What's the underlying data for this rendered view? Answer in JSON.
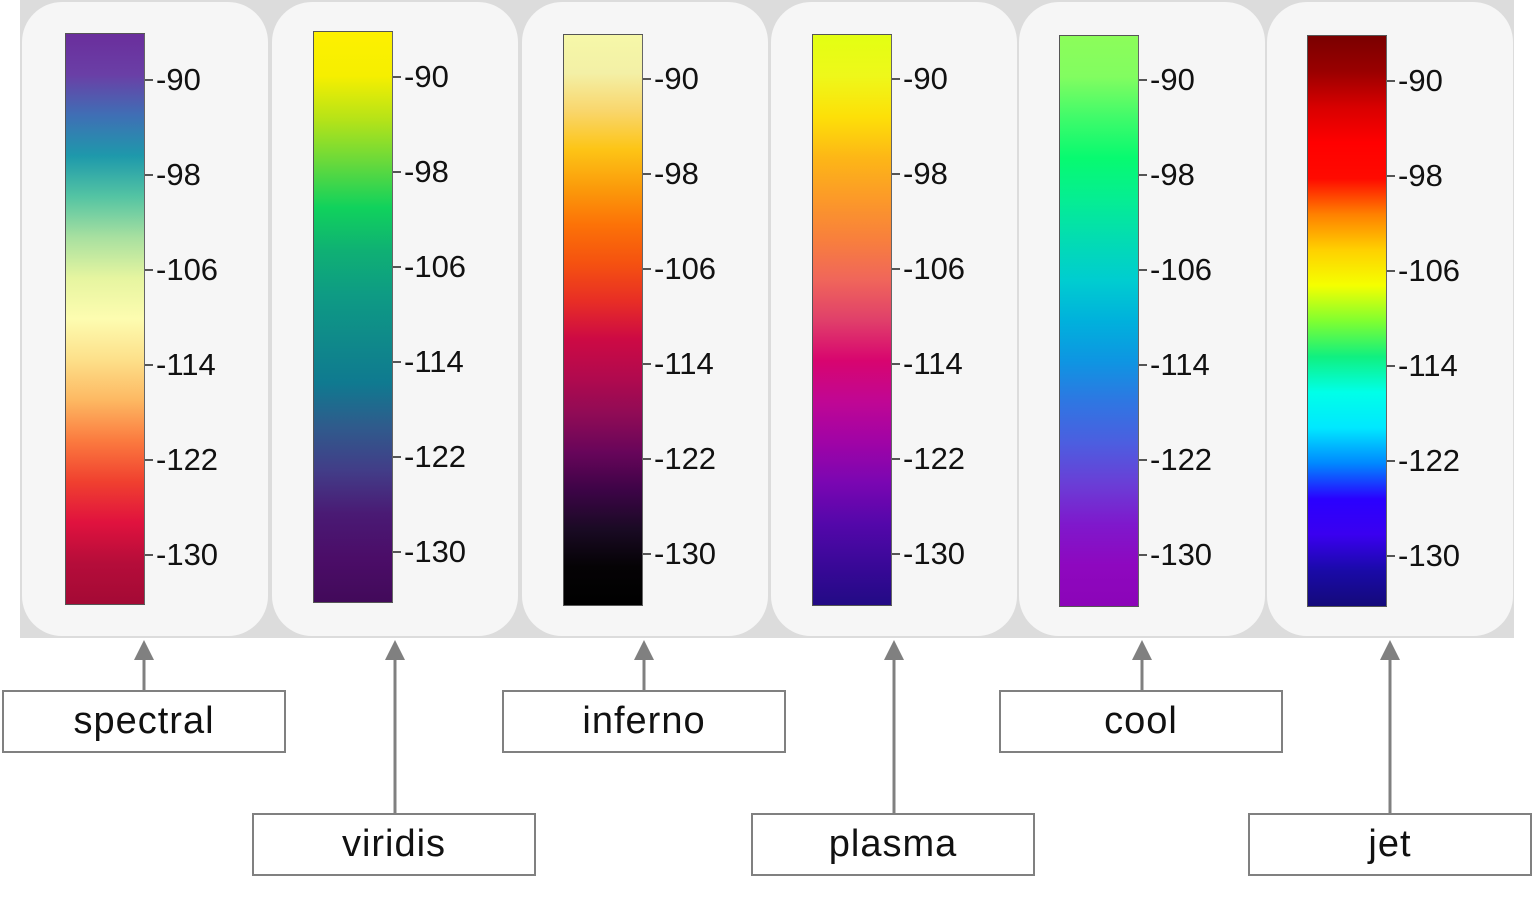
{
  "ticks": [
    "-90",
    "-98",
    "-106",
    "-114",
    "-122",
    "-130"
  ],
  "colormaps": [
    {
      "name": "spectral",
      "stops": [
        "#6a2e9c",
        "#6a3fa6",
        "#3f6fb5",
        "#1e99ab",
        "#54c4a3",
        "#a8e0a0",
        "#e6f5a0",
        "#fdfcb0",
        "#fde08a",
        "#fdb862",
        "#fb7a3f",
        "#f0402f",
        "#e0123e",
        "#b50d3a",
        "#a40a35"
      ]
    },
    {
      "name": "viridis",
      "stops": [
        "#fdf000",
        "#f6ef00",
        "#b5e318",
        "#66d93c",
        "#10d25c",
        "#0fb074",
        "#0e9b84",
        "#0f8a8a",
        "#0f7a90",
        "#2f5b8c",
        "#423d88",
        "#4a1a74",
        "#4b0d68",
        "#420a5a"
      ]
    },
    {
      "name": "inferno",
      "stops": [
        "#f6f8a8",
        "#f3f0a6",
        "#f9d66c",
        "#fdc516",
        "#fb9c0b",
        "#fc7207",
        "#f55210",
        "#e82e25",
        "#cd0a44",
        "#b20a4e",
        "#8f0b56",
        "#67055a",
        "#3c0446",
        "#1a0a24",
        "#050305",
        "#000000"
      ]
    },
    {
      "name": "plasma",
      "stops": [
        "#e3ff12",
        "#eef81a",
        "#fde008",
        "#fdb716",
        "#fc9a28",
        "#f8803c",
        "#f0665a",
        "#e0406a",
        "#d8056f",
        "#c00694",
        "#a004a6",
        "#7a06b2",
        "#5407aa",
        "#3a0898",
        "#220a85"
      ]
    },
    {
      "name": "cool",
      "stops": [
        "#8cfd5a",
        "#82fd60",
        "#40fb6a",
        "#07fa70",
        "#05ee92",
        "#03dcb2",
        "#00cdd0",
        "#00b1dc",
        "#0e95e2",
        "#2f76e2",
        "#4c5ee0",
        "#6a3ed6",
        "#7f18cc",
        "#8e08bf",
        "#8c04b8"
      ]
    },
    {
      "name": "jet",
      "stops": [
        "#7a0000",
        "#9a0000",
        "#d80000",
        "#ff0000",
        "#ff0a00",
        "#ff8000",
        "#ffd000",
        "#f5ff00",
        "#80ff30",
        "#10f080",
        "#00ffe8",
        "#00e8ff",
        "#0088ff",
        "#2a00ff",
        "#3a00f0",
        "#1a0aa8",
        "#140a7a"
      ]
    }
  ]
}
